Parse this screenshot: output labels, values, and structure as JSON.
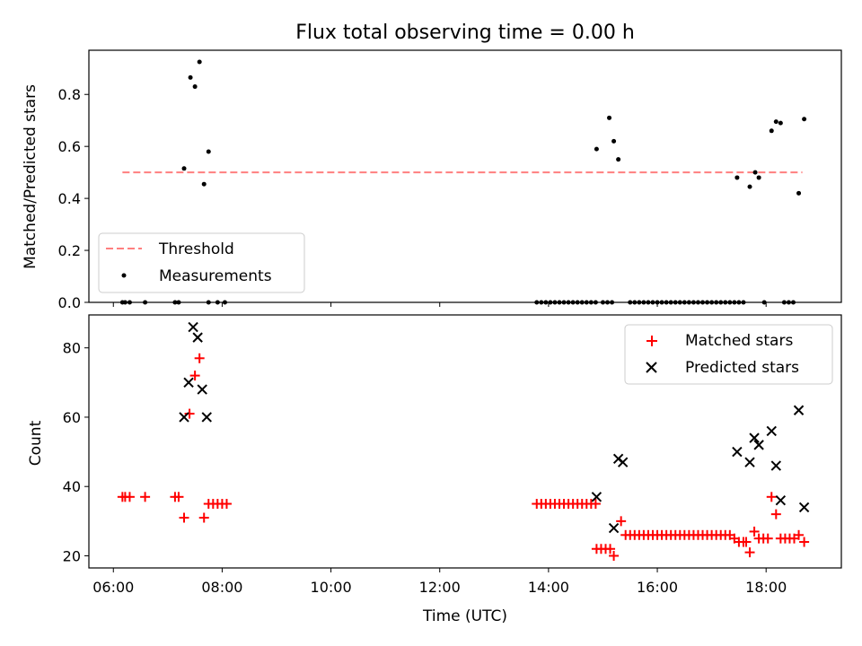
{
  "chart_data": [
    {
      "type": "scatter",
      "title": "Flux total observing time = 0.00 h",
      "ylabel": "Matched/Predicted stars",
      "xlabel": "",
      "xlim": [
        "05:33",
        "19:23"
      ],
      "ylim": [
        0,
        0.97
      ],
      "yticks": [
        "0.0",
        "0.2",
        "0.4",
        "0.6",
        "0.8"
      ],
      "ytick_values": [
        0,
        0.2,
        0.4,
        0.6,
        0.8
      ],
      "grid": false,
      "legend_position": "lower-left",
      "threshold": {
        "name": "Threshold",
        "value": 0.5,
        "x": [
          "06:10",
          "18:40"
        ],
        "color": "#ff7f7f",
        "style": "dashed"
      },
      "series": [
        {
          "name": "Measurements",
          "color": "#000000",
          "marker": "dot",
          "points": [
            [
              "06:10",
              0
            ],
            [
              "06:13",
              0
            ],
            [
              "06:18",
              0
            ],
            [
              "06:35",
              0
            ],
            [
              "07:08",
              0
            ],
            [
              "07:12",
              0
            ],
            [
              "07:45",
              0
            ],
            [
              "07:55",
              0
            ],
            [
              "08:03",
              0
            ],
            [
              "07:18",
              0.515
            ],
            [
              "07:25",
              0.865
            ],
            [
              "07:30",
              0.83
            ],
            [
              "07:35",
              0.925
            ],
            [
              "07:40",
              0.455
            ],
            [
              "07:45",
              0.58
            ],
            [
              "13:47",
              0
            ],
            [
              "13:52",
              0
            ],
            [
              "13:57",
              0
            ],
            [
              "14:02",
              0
            ],
            [
              "14:07",
              0
            ],
            [
              "14:12",
              0
            ],
            [
              "14:17",
              0
            ],
            [
              "14:22",
              0
            ],
            [
              "14:27",
              0
            ],
            [
              "14:32",
              0
            ],
            [
              "14:37",
              0
            ],
            [
              "14:42",
              0
            ],
            [
              "14:47",
              0
            ],
            [
              "14:52",
              0
            ],
            [
              "14:53",
              0.59
            ],
            [
              "15:07",
              0.71
            ],
            [
              "15:12",
              0.62
            ],
            [
              "15:17",
              0.55
            ],
            [
              "15:00",
              0
            ],
            [
              "15:05",
              0
            ],
            [
              "15:10",
              0
            ],
            [
              "15:30",
              0
            ],
            [
              "15:35",
              0
            ],
            [
              "15:40",
              0
            ],
            [
              "15:45",
              0
            ],
            [
              "15:50",
              0
            ],
            [
              "15:55",
              0
            ],
            [
              "16:00",
              0
            ],
            [
              "16:05",
              0
            ],
            [
              "16:10",
              0
            ],
            [
              "16:15",
              0
            ],
            [
              "16:20",
              0
            ],
            [
              "16:25",
              0
            ],
            [
              "16:30",
              0
            ],
            [
              "16:35",
              0
            ],
            [
              "16:40",
              0
            ],
            [
              "16:45",
              0
            ],
            [
              "16:50",
              0
            ],
            [
              "16:55",
              0
            ],
            [
              "17:00",
              0
            ],
            [
              "17:05",
              0
            ],
            [
              "17:10",
              0
            ],
            [
              "17:15",
              0
            ],
            [
              "17:20",
              0
            ],
            [
              "17:25",
              0
            ],
            [
              "17:30",
              0
            ],
            [
              "17:35",
              0
            ],
            [
              "17:28",
              0.48
            ],
            [
              "17:42",
              0.445
            ],
            [
              "17:48",
              0.5
            ],
            [
              "17:52",
              0.48
            ],
            [
              "17:58",
              0
            ],
            [
              "18:06",
              0.66
            ],
            [
              "18:11",
              0.695
            ],
            [
              "18:16",
              0.69
            ],
            [
              "18:36",
              0.42
            ],
            [
              "18:42",
              0.705
            ],
            [
              "18:20",
              0
            ],
            [
              "18:25",
              0
            ],
            [
              "18:30",
              0
            ]
          ]
        }
      ]
    },
    {
      "type": "scatter",
      "title": "",
      "ylabel": "Count",
      "xlabel": "Time (UTC)",
      "xlim": [
        "05:33",
        "19:23"
      ],
      "ylim": [
        16.5,
        89.5
      ],
      "xticks": [
        "06:00",
        "08:00",
        "10:00",
        "12:00",
        "14:00",
        "16:00",
        "18:00"
      ],
      "xtick_values": [
        "06:00",
        "08:00",
        "10:00",
        "12:00",
        "14:00",
        "16:00",
        "18:00"
      ],
      "yticks": [
        "20",
        "40",
        "60",
        "80"
      ],
      "ytick_values": [
        20,
        40,
        60,
        80
      ],
      "grid": false,
      "legend_position": "upper-right",
      "series": [
        {
          "name": "Matched stars",
          "color": "#ff0000",
          "marker": "plus",
          "points": [
            [
              "06:10",
              37
            ],
            [
              "06:13",
              37
            ],
            [
              "06:18",
              37
            ],
            [
              "06:35",
              37
            ],
            [
              "07:08",
              37
            ],
            [
              "07:12",
              37
            ],
            [
              "07:18",
              31
            ],
            [
              "07:24",
              61
            ],
            [
              "07:30",
              72
            ],
            [
              "07:35",
              77
            ],
            [
              "07:40",
              31
            ],
            [
              "07:45",
              35
            ],
            [
              "07:50",
              35
            ],
            [
              "07:55",
              35
            ],
            [
              "08:00",
              35
            ],
            [
              "08:05",
              35
            ],
            [
              "13:47",
              35
            ],
            [
              "13:52",
              35
            ],
            [
              "13:57",
              35
            ],
            [
              "14:02",
              35
            ],
            [
              "14:07",
              35
            ],
            [
              "14:12",
              35
            ],
            [
              "14:17",
              35
            ],
            [
              "14:22",
              35
            ],
            [
              "14:27",
              35
            ],
            [
              "14:32",
              35
            ],
            [
              "14:37",
              35
            ],
            [
              "14:42",
              35
            ],
            [
              "14:47",
              35
            ],
            [
              "14:52",
              35
            ],
            [
              "14:53",
              22
            ],
            [
              "14:58",
              22
            ],
            [
              "15:03",
              22
            ],
            [
              "15:08",
              22
            ],
            [
              "15:12",
              20
            ],
            [
              "15:20",
              30
            ],
            [
              "15:25",
              26
            ],
            [
              "15:30",
              26
            ],
            [
              "15:35",
              26
            ],
            [
              "15:40",
              26
            ],
            [
              "15:45",
              26
            ],
            [
              "15:50",
              26
            ],
            [
              "15:55",
              26
            ],
            [
              "16:00",
              26
            ],
            [
              "16:05",
              26
            ],
            [
              "16:10",
              26
            ],
            [
              "16:15",
              26
            ],
            [
              "16:20",
              26
            ],
            [
              "16:25",
              26
            ],
            [
              "16:30",
              26
            ],
            [
              "16:35",
              26
            ],
            [
              "16:40",
              26
            ],
            [
              "16:45",
              26
            ],
            [
              "16:50",
              26
            ],
            [
              "16:55",
              26
            ],
            [
              "17:00",
              26
            ],
            [
              "17:05",
              26
            ],
            [
              "17:10",
              26
            ],
            [
              "17:15",
              26
            ],
            [
              "17:20",
              26
            ],
            [
              "17:25",
              25
            ],
            [
              "17:30",
              24
            ],
            [
              "17:35",
              24
            ],
            [
              "17:38",
              24
            ],
            [
              "17:42",
              21
            ],
            [
              "17:47",
              27
            ],
            [
              "17:52",
              25
            ],
            [
              "17:57",
              25
            ],
            [
              "18:02",
              25
            ],
            [
              "18:06",
              37
            ],
            [
              "18:11",
              32
            ],
            [
              "18:16",
              25
            ],
            [
              "18:21",
              25
            ],
            [
              "18:26",
              25
            ],
            [
              "18:31",
              25
            ],
            [
              "18:36",
              26
            ],
            [
              "18:42",
              24
            ]
          ]
        },
        {
          "name": "Predicted stars",
          "color": "#000000",
          "marker": "x",
          "points": [
            [
              "07:18",
              60
            ],
            [
              "07:23",
              70
            ],
            [
              "07:28",
              86
            ],
            [
              "07:33",
              83
            ],
            [
              "07:38",
              68
            ],
            [
              "07:43",
              60
            ],
            [
              "14:53",
              37
            ],
            [
              "15:12",
              28
            ],
            [
              "15:17",
              48
            ],
            [
              "15:22",
              47
            ],
            [
              "17:28",
              50
            ],
            [
              "17:42",
              47
            ],
            [
              "17:47",
              54
            ],
            [
              "17:52",
              52
            ],
            [
              "18:06",
              56
            ],
            [
              "18:11",
              46
            ],
            [
              "18:16",
              36
            ],
            [
              "18:36",
              62
            ],
            [
              "18:42",
              34
            ]
          ]
        }
      ]
    }
  ]
}
